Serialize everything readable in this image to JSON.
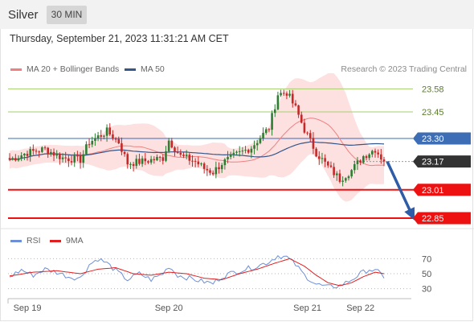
{
  "header": {
    "symbol": "Silver",
    "timeframe": "30 MIN",
    "timestamp": "Thursday, September 21, 2023 11:31:21 AM CET"
  },
  "legend": {
    "ma20_label": "MA 20 + Bollinger Bands",
    "ma50_label": "MA 50",
    "credit": "Research © 2023 Trading Central",
    "rsi_label": "RSI",
    "rsi_ma_label": "9MA"
  },
  "colors": {
    "band_fill": "#fde0e0",
    "ma20": "#f08080",
    "ma50": "#34568b",
    "bull": "#2e7d32",
    "bear": "#c62828",
    "target_line": "#ee1111",
    "resistance_line": "#a6cf6d",
    "pivot_line": "#3d6db5",
    "arrow": "#2e5ca6",
    "rsi": "#6c8fd8",
    "rsi_ma": "#e02020"
  },
  "chart_data": [
    {
      "type": "candlestick",
      "title": "Silver 30 MIN",
      "ylim": [
        22.8,
        23.65
      ],
      "x_labels": [
        "Sep 19",
        "Sep 20",
        "Sep 21",
        "Sep 22"
      ],
      "x_label_index": [
        6,
        54,
        101,
        119
      ],
      "x_count": 128,
      "price_path": [
        [
          0,
          23.18
        ],
        [
          6,
          23.22
        ],
        [
          12,
          23.24
        ],
        [
          18,
          23.19
        ],
        [
          24,
          23.18
        ],
        [
          27,
          23.28
        ],
        [
          33,
          23.34
        ],
        [
          37,
          23.28
        ],
        [
          40,
          23.16
        ],
        [
          45,
          23.17
        ],
        [
          52,
          23.19
        ],
        [
          54,
          23.29
        ],
        [
          58,
          23.2
        ],
        [
          63,
          23.17
        ],
        [
          66,
          23.13
        ],
        [
          69,
          23.11
        ],
        [
          72,
          23.16
        ],
        [
          76,
          23.2
        ],
        [
          82,
          23.25
        ],
        [
          88,
          23.36
        ],
        [
          91,
          23.55
        ],
        [
          94,
          23.56
        ],
        [
          97,
          23.47
        ],
        [
          100,
          23.35
        ],
        [
          104,
          23.22
        ],
        [
          108,
          23.14
        ],
        [
          112,
          23.07
        ],
        [
          116,
          23.12
        ],
        [
          120,
          23.2
        ],
        [
          124,
          23.24
        ],
        [
          127,
          23.17
        ]
      ],
      "levels": [
        {
          "label": "23.58",
          "value": 23.58,
          "style": "resistance"
        },
        {
          "label": "23.45",
          "value": 23.45,
          "style": "resistance"
        },
        {
          "label": "23.30",
          "value": 23.3,
          "style": "pivot"
        },
        {
          "label": "23.17",
          "value": 23.17,
          "style": "last"
        },
        {
          "label": "23.01",
          "value": 23.01,
          "style": "target"
        },
        {
          "label": "22.85",
          "value": 22.85,
          "style": "target"
        }
      ],
      "projection": {
        "from": [
          127,
          23.17
        ],
        "to": [
          137,
          22.85
        ]
      }
    },
    {
      "type": "line",
      "title": "RSI",
      "ylim": [
        20,
        80
      ],
      "y_ticks": [
        "70",
        "50",
        "30"
      ],
      "series": [
        {
          "name": "RSI",
          "values": [
            [
              0,
              46
            ],
            [
              4,
              55
            ],
            [
              8,
              48
            ],
            [
              12,
              56
            ],
            [
              16,
              52
            ],
            [
              20,
              46
            ],
            [
              24,
              44
            ],
            [
              27,
              62
            ],
            [
              30,
              70
            ],
            [
              33,
              64
            ],
            [
              36,
              54
            ],
            [
              40,
              42
            ],
            [
              44,
              50
            ],
            [
              48,
              42
            ],
            [
              52,
              50
            ],
            [
              54,
              60
            ],
            [
              57,
              48
            ],
            [
              61,
              44
            ],
            [
              65,
              40
            ],
            [
              69,
              37
            ],
            [
              72,
              46
            ],
            [
              76,
              52
            ],
            [
              80,
              56
            ],
            [
              84,
              60
            ],
            [
              88,
              66
            ],
            [
              91,
              74
            ],
            [
              94,
              72
            ],
            [
              97,
              62
            ],
            [
              100,
              48
            ],
            [
              104,
              36
            ],
            [
              108,
              32
            ],
            [
              112,
              34
            ],
            [
              116,
              42
            ],
            [
              119,
              50
            ],
            [
              122,
              56
            ],
            [
              125,
              52
            ],
            [
              127,
              46
            ]
          ]
        },
        {
          "name": "9MA",
          "values": [
            [
              0,
              47
            ],
            [
              8,
              52
            ],
            [
              16,
              54
            ],
            [
              24,
              50
            ],
            [
              30,
              56
            ],
            [
              36,
              58
            ],
            [
              42,
              50
            ],
            [
              48,
              48
            ],
            [
              54,
              52
            ],
            [
              60,
              50
            ],
            [
              66,
              44
            ],
            [
              72,
              42
            ],
            [
              78,
              50
            ],
            [
              84,
              56
            ],
            [
              90,
              64
            ],
            [
              95,
              70
            ],
            [
              100,
              60
            ],
            [
              104,
              48
            ],
            [
              108,
              38
            ],
            [
              112,
              34
            ],
            [
              116,
              38
            ],
            [
              120,
              46
            ],
            [
              124,
              52
            ],
            [
              127,
              50
            ]
          ]
        }
      ]
    }
  ]
}
